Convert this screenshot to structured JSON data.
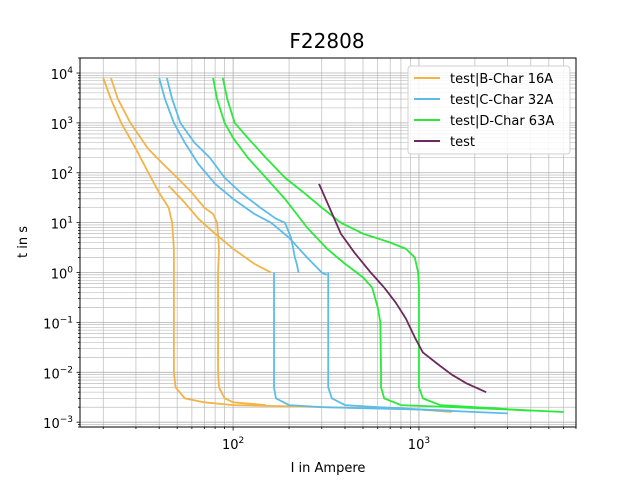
{
  "chart_data": {
    "type": "line",
    "title": "F22808",
    "xlabel": "I in Ampere",
    "ylabel": "t in s",
    "xscale": "log",
    "yscale": "log",
    "xlim": [
      15,
      7000
    ],
    "ylim": [
      0.0008,
      20000
    ],
    "grid": "major and minor",
    "legend_position": "top-right",
    "x_tick_labels": [
      {
        "value": 100,
        "base": "10",
        "exp": "2"
      },
      {
        "value": 1000,
        "base": "10",
        "exp": "3"
      }
    ],
    "y_tick_labels": [
      {
        "value": 10000,
        "base": "10",
        "exp": "4"
      },
      {
        "value": 1000,
        "base": "10",
        "exp": "3"
      },
      {
        "value": 100,
        "base": "10",
        "exp": "2"
      },
      {
        "value": 10,
        "base": "10",
        "exp": "1"
      },
      {
        "value": 1,
        "base": "10",
        "exp": "0"
      },
      {
        "value": 0.1,
        "base": "10",
        "exp": "−1"
      },
      {
        "value": 0.01,
        "base": "10",
        "exp": "−2"
      },
      {
        "value": 0.001,
        "base": "10",
        "exp": "−3"
      }
    ],
    "series": [
      {
        "name": "test|B-Char 16A",
        "color": "#f0b449",
        "lines": [
          [
            [
              20,
              8000
            ],
            [
              22,
              3000
            ],
            [
              25,
              1000
            ],
            [
              30,
              300
            ],
            [
              35,
              100
            ],
            [
              40,
              40
            ],
            [
              45,
              20
            ],
            [
              47,
              10
            ],
            [
              48,
              3
            ],
            [
              48,
              1
            ],
            [
              48,
              0.1
            ],
            [
              48,
              0.01
            ],
            [
              49,
              0.005
            ],
            [
              55,
              0.003
            ],
            [
              70,
              0.0025
            ],
            [
              100,
              0.0022
            ],
            [
              300,
              0.002
            ],
            [
              600,
              0.0019
            ],
            [
              1000,
              0.0018
            ],
            [
              1500,
              0.0016
            ]
          ],
          [
            [
              22,
              8000
            ],
            [
              24,
              3000
            ],
            [
              28,
              1000
            ],
            [
              35,
              300
            ],
            [
              42,
              150
            ],
            [
              50,
              80
            ],
            [
              60,
              40
            ],
            [
              70,
              20
            ],
            [
              78,
              15
            ],
            [
              82,
              10
            ],
            [
              84,
              3
            ],
            [
              83,
              1
            ],
            [
              83,
              0.1
            ],
            [
              83,
              0.01
            ],
            [
              84,
              0.005
            ],
            [
              90,
              0.003
            ],
            [
              100,
              0.0025
            ],
            [
              150,
              0.0022
            ]
          ],
          [
            [
              45,
              55
            ],
            [
              55,
              25
            ],
            [
              65,
              12
            ],
            [
              80,
              6
            ],
            [
              100,
              3
            ],
            [
              130,
              1.5
            ],
            [
              160,
              1
            ]
          ]
        ]
      },
      {
        "name": "test|C-Char 32A",
        "color": "#5bbcea",
        "lines": [
          [
            [
              40,
              8000
            ],
            [
              43,
              3000
            ],
            [
              48,
              1000
            ],
            [
              55,
              400
            ],
            [
              65,
              150
            ],
            [
              80,
              60
            ],
            [
              100,
              30
            ],
            [
              130,
              15
            ],
            [
              160,
              10
            ],
            [
              200,
              5
            ],
            [
              250,
              2
            ],
            [
              300,
              1
            ],
            [
              320,
              0.9
            ]
          ],
          [
            [
              44,
              8000
            ],
            [
              47,
              3000
            ],
            [
              52,
              1000
            ],
            [
              62,
              400
            ],
            [
              75,
              200
            ],
            [
              90,
              80
            ],
            [
              110,
              40
            ],
            [
              140,
              20
            ],
            [
              170,
              12
            ],
            [
              190,
              10
            ],
            [
              205,
              5
            ],
            [
              215,
              2
            ],
            [
              220,
              1.5
            ],
            [
              225,
              1
            ]
          ],
          [
            [
              166,
              1
            ],
            [
              166,
              0.1
            ],
            [
              166,
              0.01
            ],
            [
              166,
              0.005
            ],
            [
              170,
              0.003
            ],
            [
              200,
              0.0022
            ],
            [
              300,
              0.002
            ],
            [
              500,
              0.0019
            ],
            [
              1000,
              0.0018
            ],
            [
              2000,
              0.0016
            ],
            [
              3000,
              0.0015
            ]
          ],
          [
            [
              325,
              1
            ],
            [
              325,
              0.1
            ],
            [
              325,
              0.01
            ],
            [
              325,
              0.005
            ],
            [
              340,
              0.003
            ],
            [
              400,
              0.0022
            ],
            [
              600,
              0.002
            ],
            [
              1000,
              0.0018
            ],
            [
              1500,
              0.0017
            ]
          ]
        ]
      },
      {
        "name": "test|D-Char 63A",
        "color": "#2be93b",
        "lines": [
          [
            [
              78,
              8000
            ],
            [
              82,
              3000
            ],
            [
              90,
              1000
            ],
            [
              100,
              500
            ],
            [
              120,
              200
            ],
            [
              150,
              80
            ],
            [
              190,
              30
            ],
            [
              250,
              8
            ],
            [
              320,
              3
            ],
            [
              400,
              1.5
            ],
            [
              500,
              0.8
            ],
            [
              560,
              0.5
            ],
            [
              600,
              0.2
            ],
            [
              620,
              0.1
            ],
            [
              625,
              0.01
            ],
            [
              625,
              0.005
            ],
            [
              650,
              0.003
            ],
            [
              800,
              0.0022
            ],
            [
              1500,
              0.002
            ],
            [
              3000,
              0.0018
            ],
            [
              6000,
              0.0016
            ]
          ],
          [
            [
              88,
              8000
            ],
            [
              93,
              3000
            ],
            [
              102,
              1000
            ],
            [
              120,
              500
            ],
            [
              150,
              200
            ],
            [
              190,
              80
            ],
            [
              240,
              40
            ],
            [
              300,
              20
            ],
            [
              380,
              10
            ],
            [
              500,
              6
            ],
            [
              700,
              4
            ],
            [
              850,
              3
            ],
            [
              950,
              2
            ],
            [
              990,
              1
            ],
            [
              1000,
              0.5
            ],
            [
              1000,
              0.1
            ],
            [
              1000,
              0.01
            ],
            [
              1000,
              0.005
            ],
            [
              1050,
              0.003
            ],
            [
              1300,
              0.0022
            ],
            [
              2000,
              0.002
            ],
            [
              4000,
              0.0017
            ]
          ]
        ]
      },
      {
        "name": "test",
        "color": "#6a2b5c",
        "lines": [
          [
            [
              290,
              60
            ],
            [
              330,
              20
            ],
            [
              380,
              6
            ],
            [
              450,
              2.5
            ],
            [
              550,
              1
            ],
            [
              650,
              0.5
            ],
            [
              750,
              0.25
            ],
            [
              850,
              0.12
            ],
            [
              950,
              0.05
            ],
            [
              1050,
              0.025
            ],
            [
              1250,
              0.015
            ],
            [
              1500,
              0.009
            ],
            [
              1800,
              0.006
            ],
            [
              2300,
              0.004
            ]
          ]
        ]
      }
    ]
  }
}
